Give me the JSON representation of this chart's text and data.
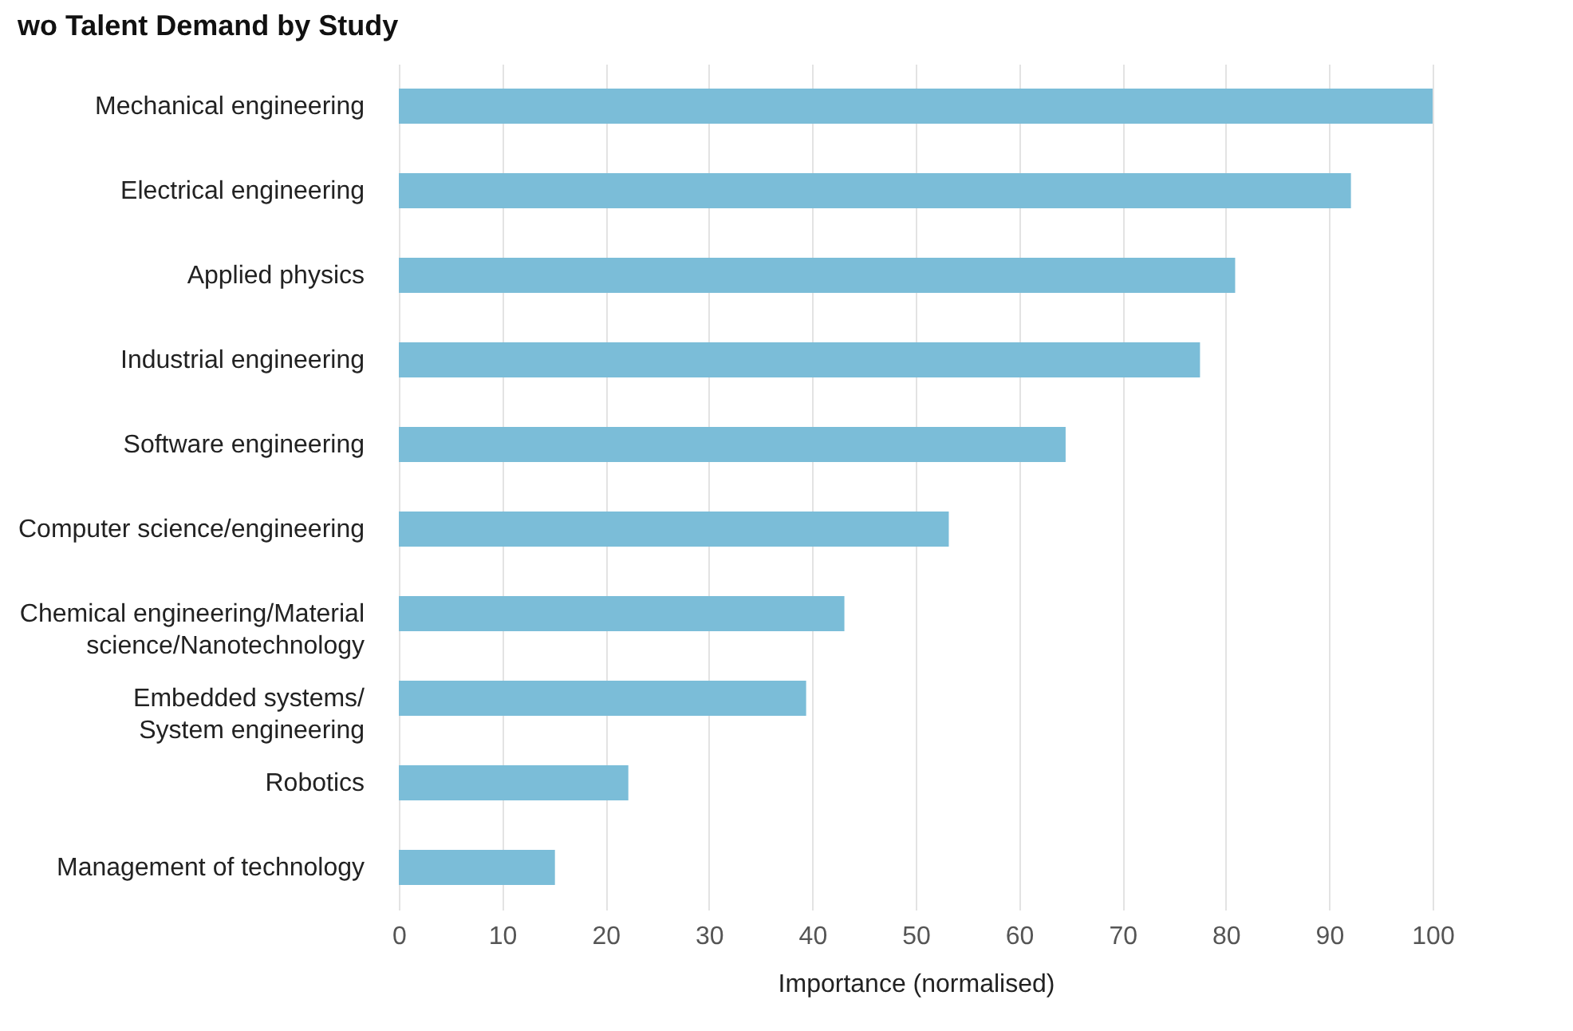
{
  "chart_data": {
    "type": "bar",
    "orientation": "horizontal",
    "title": "wo Talent Demand by Study",
    "xlabel": "Importance (normalised)",
    "categories": [
      "Mechanical engineering",
      "Electrical engineering",
      "Applied physics",
      "Industrial engineering",
      "Software engineering",
      "Computer science/engineering",
      "Chemical engineering/Material\nscience/Nanotechnology",
      "Embedded systems/\nSystem engineering",
      "Robotics",
      "Management of technology"
    ],
    "values": [
      100,
      92.1,
      80.9,
      77.5,
      64.5,
      53.2,
      43.1,
      39.4,
      22.2,
      15.1
    ],
    "color": "#7bbdd8",
    "xlim": [
      0,
      100
    ],
    "xticks": [
      0,
      10,
      20,
      30,
      40,
      50,
      60,
      70,
      80,
      90,
      100
    ],
    "grid": "x"
  }
}
